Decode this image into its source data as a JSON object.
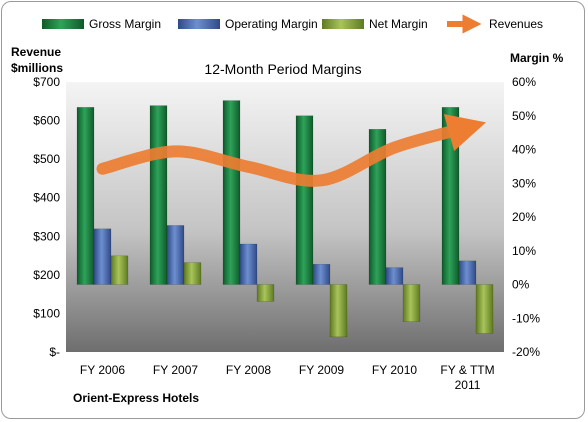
{
  "chart_data": {
    "type": "bar",
    "title": "12-Month Period Margins",
    "company": "Orient-Express Hotels",
    "left_axis_title": [
      "Revenue",
      "$millions"
    ],
    "right_axis_title": "Margin %",
    "categories": [
      [
        "FY 2006"
      ],
      [
        "FY 2007"
      ],
      [
        "FY 2008"
      ],
      [
        "FY 2009"
      ],
      [
        "FY 2010"
      ],
      [
        "FY & TTM",
        "2011"
      ]
    ],
    "left_ticks": [
      "$-",
      "$100",
      "$200",
      "$300",
      "$400",
      "$500",
      "$600",
      "$700"
    ],
    "right_ticks": [
      "-20%",
      "-10%",
      "0%",
      "10%",
      "20%",
      "30%",
      "40%",
      "50%",
      "60%"
    ],
    "ylim_left": [
      0,
      700
    ],
    "ylim_right": [
      -20,
      60
    ],
    "grid": false,
    "legend_position": "top",
    "series": [
      {
        "name": "Gross Margin",
        "axis": "right",
        "kind": "bar",
        "color": "#1f8b45",
        "values": [
          52.5,
          53,
          54.5,
          50,
          46,
          52.5
        ]
      },
      {
        "name": "Operating Margin",
        "axis": "right",
        "kind": "bar",
        "color": "#4f6fb8",
        "values": [
          16.5,
          17.5,
          12,
          6,
          5,
          7
        ]
      },
      {
        "name": "Net Margin",
        "axis": "right",
        "kind": "bar",
        "color": "#8aaa3c",
        "values": [
          8.5,
          6.5,
          -5,
          -15.5,
          -11,
          -14.5
        ]
      },
      {
        "name": "Revenues",
        "axis": "left",
        "kind": "line",
        "color": "#ed7d31",
        "values": [
          475,
          520,
          480,
          445,
          530,
          582
        ]
      }
    ]
  }
}
